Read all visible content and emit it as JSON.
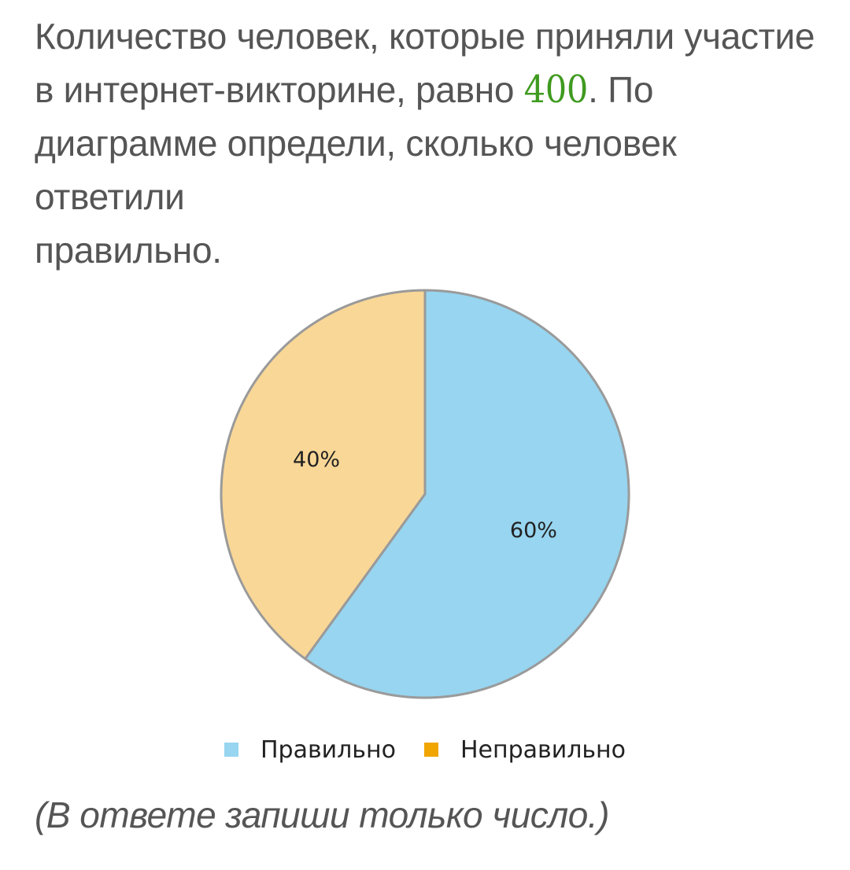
{
  "question": {
    "line1": "Количество человек, которые приняли участие",
    "line2_before": "в интернет-викторине, равно ",
    "number": "400",
    "line2_after": ". По",
    "line3": "диаграмме определи, сколько человек ответили",
    "line4": "правильно."
  },
  "note": "(В ответе запиши только число.)",
  "colors": {
    "correct": "#97d5f0",
    "incorrect": "#f9d796",
    "incorrect_legend": "#f0a500",
    "stroke": "#9a9a9a"
  },
  "chart_data": {
    "type": "pie",
    "categories": [
      "Правильно",
      "Неправильно"
    ],
    "values": [
      60,
      40
    ],
    "labels": [
      "60%",
      "40%"
    ],
    "legend_position": "bottom",
    "title": ""
  }
}
